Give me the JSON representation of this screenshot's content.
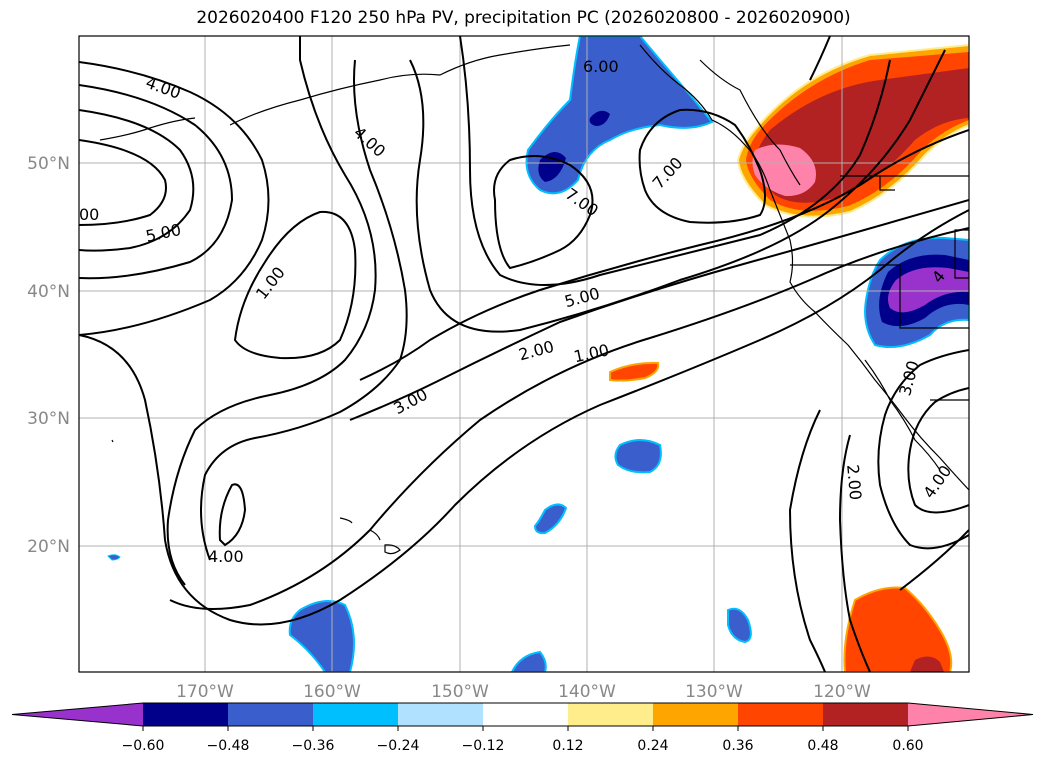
{
  "title": "2026020400 F120 250 hPa PV, precipitation PC (2026020800 - 2026020900)",
  "map": {
    "lat_labels": [
      "50°N",
      "40°N",
      "30°N",
      "20°N"
    ],
    "lon_labels": [
      "170°W",
      "160°W",
      "150°W",
      "140°W",
      "130°W",
      "120°W"
    ],
    "contour_labels": [
      "4.00",
      "4.00",
      "6.00",
      "7.00",
      "7.00",
      "00",
      "5.00",
      "1.00",
      "5.00",
      "2.00",
      "1.00",
      "3.00",
      "4.00",
      "3.00",
      "2.00",
      "4.00",
      "4"
    ]
  },
  "colorbar": {
    "ticks": [
      "−0.60",
      "−0.48",
      "−0.36",
      "−0.24",
      "−0.12",
      "0.12",
      "0.24",
      "0.36",
      "0.48",
      "0.60"
    ],
    "colors": [
      "#9932cc",
      "#00008b",
      "#3a5fcd",
      "#00bfff",
      "#b0e2ff",
      "#ffffff",
      "#ffec8b",
      "#ffa500",
      "#ff4500",
      "#b22222",
      "#ff82ab"
    ]
  }
}
